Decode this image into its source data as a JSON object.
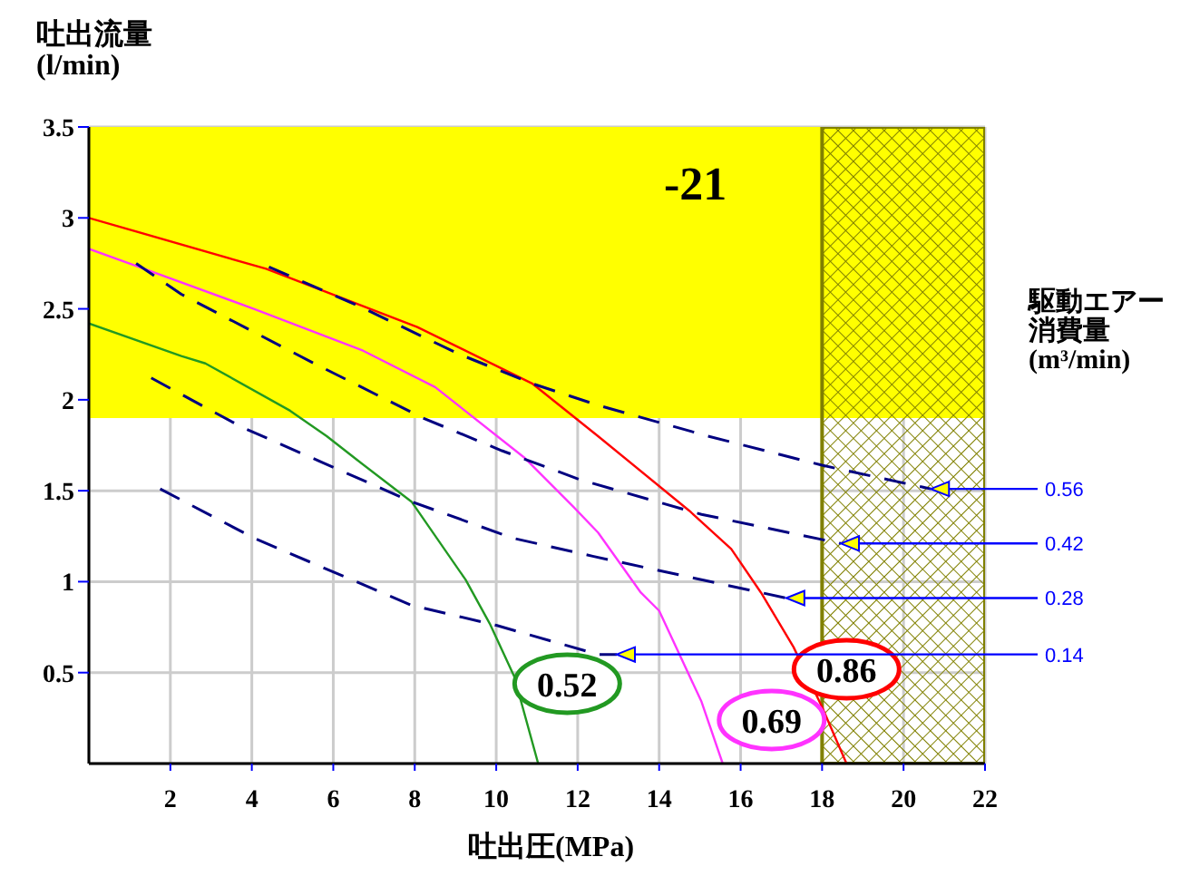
{
  "chart_data": {
    "type": "line",
    "ylabel": "吐出流量(l/min)",
    "xlabel": "吐出圧(MPa)",
    "y2label": "駆動エアー消費量(m³/min)",
    "annotations": [
      "-21"
    ],
    "xlim": [
      0,
      22
    ],
    "xticks": [
      2,
      4,
      6,
      8,
      10,
      12,
      14,
      16,
      18,
      20,
      22
    ],
    "ylim": [
      0,
      3.5
    ],
    "yticks": [
      0.5,
      1,
      1.5,
      2,
      2.5,
      3,
      3.5
    ],
    "grid": true,
    "line_style": "solid",
    "marker": "none",
    "bands": [
      {
        "axis": "y",
        "from": 1.9,
        "to": 3.5,
        "color": "#ffff00"
      },
      {
        "axis": "x",
        "from": 18,
        "to": 22,
        "color": "#808000"
      }
    ],
    "series": [
      {
        "name": "0.86",
        "color": "#ff0000",
        "x": [
          0,
          4.35,
          8.06,
          10.88,
          12.5,
          14.74,
          15.77,
          16.5,
          17.3,
          18,
          18.6
        ],
        "values": [
          3.0,
          2.72,
          2.4,
          2.09,
          1.8,
          1.39,
          1.18,
          0.94,
          0.64,
          0.31,
          0
        ]
      },
      {
        "name": "0.69",
        "color": "#ff33ff",
        "x": [
          0,
          1.23,
          4.05,
          6.73,
          8.5,
          10.7,
          11.9,
          12.5,
          13.55,
          14,
          15.04,
          15.56
        ],
        "values": [
          2.83,
          2.73,
          2.5,
          2.27,
          2.07,
          1.68,
          1.41,
          1.27,
          0.94,
          0.84,
          0.34,
          0
        ]
      },
      {
        "name": "0.52",
        "color": "#229922",
        "x": [
          0,
          2.27,
          2.86,
          4.94,
          5.84,
          6.58,
          7.92,
          9.25,
          9.84,
          10.44,
          11.03
        ],
        "values": [
          2.42,
          2.24,
          2.2,
          1.94,
          1.8,
          1.67,
          1.44,
          1.01,
          0.77,
          0.48,
          0
        ]
      },
      {
        "name": "0.56",
        "color": "#000080",
        "line_style": "dashed",
        "x": [
          4.42,
          6.58,
          9.1,
          10.87,
          12.5,
          15.2,
          18,
          20.67
        ],
        "values": [
          2.73,
          2.52,
          2.25,
          2.09,
          1.97,
          1.8,
          1.64,
          1.51
        ]
      },
      {
        "name": "0.42",
        "color": "#000080",
        "line_style": "dashed",
        "x": [
          1.16,
          2.27,
          5.53,
          8.2,
          10.14,
          12.07,
          15.04,
          18.46
        ],
        "values": [
          2.75,
          2.58,
          2.2,
          1.9,
          1.72,
          1.56,
          1.37,
          1.21
        ]
      },
      {
        "name": "0.28",
        "color": "#000080",
        "line_style": "dashed",
        "x": [
          1.53,
          3.75,
          7.92,
          10.4,
          12.37,
          17.12
        ],
        "values": [
          2.12,
          1.85,
          1.44,
          1.24,
          1.14,
          0.91
        ]
      },
      {
        "name": "0.14",
        "color": "#000080",
        "line_style": "dashed",
        "x": [
          1.75,
          4.05,
          7.92,
          10.0,
          12.5,
          12.96
        ],
        "values": [
          1.51,
          1.24,
          0.87,
          0.76,
          0.6,
          0.6
        ]
      }
    ]
  }
}
